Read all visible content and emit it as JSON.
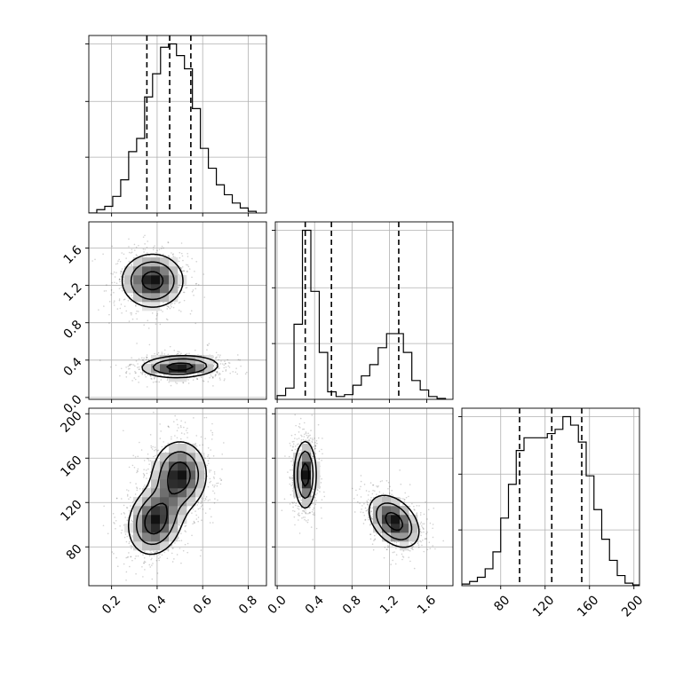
{
  "chart_data": {
    "type": "corner",
    "grid": true,
    "legend": "none",
    "variables": [
      {
        "range": [
          0.1,
          0.88
        ],
        "ticks": [
          0.2,
          0.4,
          0.6,
          0.8
        ],
        "tick_labels": [
          "0.2",
          "0.4",
          "0.6",
          "0.8"
        ],
        "quantiles": [
          0.355,
          0.455,
          0.548
        ]
      },
      {
        "range": [
          -0.02,
          1.88
        ],
        "ticks": [
          0.0,
          0.4,
          0.8,
          1.2,
          1.6
        ],
        "tick_labels": [
          "0.0",
          "0.4",
          "0.8",
          "1.2",
          "1.6"
        ],
        "quantiles": [
          0.3,
          0.58,
          1.3
        ]
      },
      {
        "range": [
          45,
          205
        ],
        "ticks": [
          80,
          120,
          160,
          200
        ],
        "tick_labels": [
          "80",
          "120",
          "160",
          "200"
        ],
        "quantiles": [
          97,
          126,
          153
        ]
      }
    ],
    "histograms": [
      {
        "variable": 0,
        "bin_edges": [
          0.1,
          0.135,
          0.17,
          0.205,
          0.24,
          0.275,
          0.31,
          0.345,
          0.38,
          0.415,
          0.45,
          0.485,
          0.52,
          0.555,
          0.59,
          0.625,
          0.66,
          0.695,
          0.73,
          0.765,
          0.8,
          0.835
        ],
        "counts": [
          0.0,
          0.1,
          0.2,
          0.5,
          1.0,
          1.85,
          2.25,
          3.5,
          4.2,
          5.0,
          5.1,
          4.75,
          4.35,
          3.15,
          1.95,
          1.35,
          0.85,
          0.55,
          0.3,
          0.15,
          0.05
        ]
      },
      {
        "variable": 1,
        "bin_edges": [
          0.0,
          0.09,
          0.18,
          0.27,
          0.36,
          0.45,
          0.54,
          0.63,
          0.72,
          0.81,
          0.9,
          0.99,
          1.08,
          1.17,
          1.26,
          1.35,
          1.44,
          1.53,
          1.62,
          1.71,
          1.8
        ],
        "counts": [
          0.04,
          0.12,
          0.8,
          1.8,
          1.15,
          0.5,
          0.08,
          0.03,
          0.05,
          0.15,
          0.25,
          0.37,
          0.55,
          0.7,
          0.7,
          0.5,
          0.2,
          0.1,
          0.03,
          0.01
        ]
      },
      {
        "variable": 2,
        "bin_edges": [
          45,
          52,
          59,
          66,
          73,
          80,
          87,
          94,
          101,
          108,
          115,
          122,
          129,
          136,
          143,
          150,
          157,
          164,
          171,
          178,
          185,
          192,
          199,
          205
        ],
        "counts": [
          0.02,
          0.05,
          0.1,
          0.2,
          0.4,
          0.8,
          1.2,
          1.6,
          1.75,
          1.75,
          1.75,
          1.8,
          1.85,
          2.0,
          1.9,
          1.7,
          1.3,
          0.9,
          0.55,
          0.3,
          0.12,
          0.03,
          0.01
        ]
      }
    ],
    "pairs": [
      {
        "x": 0,
        "y": 1,
        "components": [
          {
            "mean": [
              0.38,
              1.25
            ],
            "sd": [
              0.08,
              0.17
            ],
            "rho": 0.0,
            "weight": 0.5
          },
          {
            "mean": [
              0.5,
              0.33
            ],
            "sd": [
              0.1,
              0.07
            ],
            "rho": 0.1,
            "weight": 0.5
          }
        ],
        "contour_levels": [
          0.25,
          0.5,
          0.85
        ]
      },
      {
        "x": 0,
        "y": 2,
        "components": [
          {
            "mean": [
              0.5,
              145
            ],
            "sd": [
              0.07,
              18
            ],
            "rho": 0.0,
            "weight": 0.5
          },
          {
            "mean": [
              0.39,
              103
            ],
            "sd": [
              0.07,
              18
            ],
            "rho": 0.15,
            "weight": 0.5
          }
        ],
        "contour_levels": [
          0.25,
          0.5,
          0.8
        ]
      },
      {
        "x": 1,
        "y": 2,
        "components": [
          {
            "mean": [
              0.3,
              145
            ],
            "sd": [
              0.07,
              18
            ],
            "rho": 0.0,
            "weight": 0.5
          },
          {
            "mean": [
              1.25,
              103
            ],
            "sd": [
              0.16,
              14
            ],
            "rho": -0.4,
            "weight": 0.5
          }
        ],
        "contour_levels": [
          0.25,
          0.5,
          0.85
        ]
      }
    ]
  }
}
